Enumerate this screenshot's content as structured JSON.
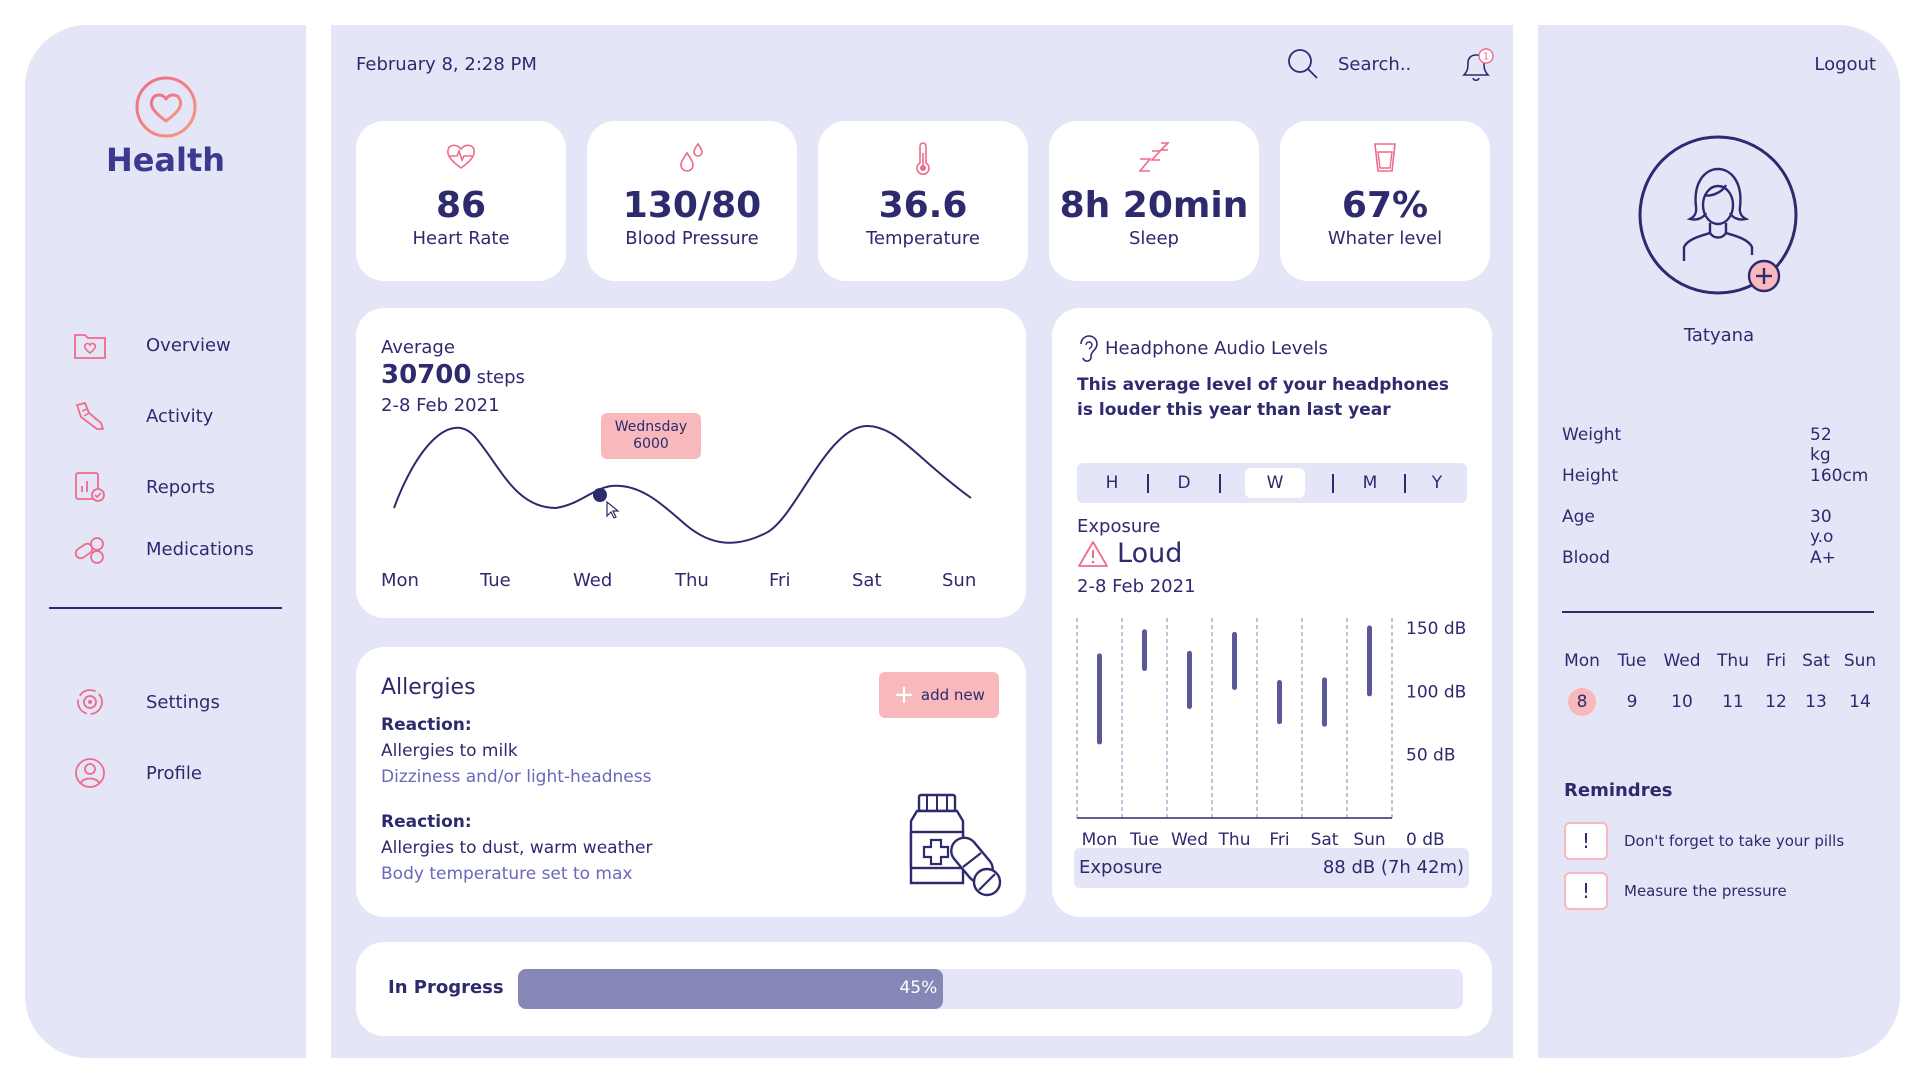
{
  "app": {
    "name": "Health"
  },
  "nav": {
    "items": [
      {
        "label": "Overview",
        "icon": "folder-heart-icon"
      },
      {
        "label": "Activity",
        "icon": "sneaker-icon"
      },
      {
        "label": "Reports",
        "icon": "report-check-icon"
      },
      {
        "label": "Medications",
        "icon": "pills-icon"
      }
    ],
    "bottom": [
      {
        "label": "Settings",
        "icon": "settings-icon"
      },
      {
        "label": "Profile",
        "icon": "profile-icon"
      }
    ]
  },
  "topbar": {
    "datetime": "February 8,  2:28 PM",
    "search_label": "Search..",
    "notifications": "1"
  },
  "stats": [
    {
      "value": "86",
      "label": "Heart Rate",
      "icon": "heart-rate-icon"
    },
    {
      "value": "130/80",
      "label": "Blood Pressure",
      "icon": "drops-icon"
    },
    {
      "value": "36.6",
      "label": "Temperature",
      "icon": "thermometer-icon"
    },
    {
      "value": "8h 20min",
      "label": "Sleep",
      "icon": "sleep-icon"
    },
    {
      "value": "67%",
      "label": "Whater level",
      "icon": "water-glass-icon"
    }
  ],
  "steps": {
    "average_label": "Average",
    "value": "30700",
    "unit": "steps",
    "range": "2-8 Feb 2021",
    "tooltip_day": "Wednsday",
    "tooltip_value": "6000",
    "days": [
      "Mon",
      "Tue",
      "Wed",
      "Thu",
      "Fri",
      "Sat",
      "Sun"
    ]
  },
  "allergies": {
    "title": "Allergies",
    "add_label": "add new",
    "entries": [
      {
        "reaction_label": "Reaction:",
        "item": "Allergies to milk",
        "detail": "Dizziness and/or light-headness"
      },
      {
        "reaction_label": "Reaction:",
        "item": "Allergies to dust, warm weather",
        "detail": "Body temperature set to max"
      }
    ]
  },
  "audio": {
    "title": "Headphone Audio Levels",
    "description_line1": "This average level of your headphones",
    "description_line2": "is louder this year than last year",
    "periods": [
      "H",
      "D",
      "W",
      "M",
      "Y"
    ],
    "active_period": "W",
    "exposure_label": "Exposure",
    "level": "Loud",
    "range": "2-8 Feb 2021",
    "summary_label": "Exposure",
    "summary_value": "88 dB (7h 42m)"
  },
  "chart_data": {
    "type": "bar",
    "categories": [
      "Mon",
      "Tue",
      "Wed",
      "Thu",
      "Fri",
      "Sat",
      "Sun"
    ],
    "series": [
      {
        "low": [
          60,
          118,
          88,
          103,
          76,
          74,
          98
        ],
        "high": [
          128,
          147,
          130,
          145,
          107,
          109,
          150
        ]
      }
    ],
    "ylim": [
      0,
      150
    ],
    "yticks": [
      "150 dB",
      "100 dB",
      "50 dB",
      "0 dB"
    ],
    "grid": true
  },
  "progress": {
    "label": "In Progress",
    "value": 45,
    "display": "45%"
  },
  "profile": {
    "logout_label": "Logout",
    "name": "Tatyana",
    "info": [
      {
        "label": "Weight",
        "value": "52 kg"
      },
      {
        "label": "Height",
        "value": "160cm"
      },
      {
        "label": "Age",
        "value": "30 y.o"
      },
      {
        "label": "Blood",
        "value": "A+"
      }
    ]
  },
  "calendar": {
    "days": [
      "Mon",
      "Tue",
      "Wed",
      "Thu",
      "Fri",
      "Sat",
      "Sun"
    ],
    "dates": [
      "8",
      "9",
      "10",
      "11",
      "12",
      "13",
      "14"
    ],
    "today": "8"
  },
  "reminders": {
    "title": "Remindres",
    "items": [
      "Don't forget to take your pills",
      "Measure the pressure"
    ]
  },
  "colors": {
    "accent": "#f7b9bc",
    "primary": "#2d2a6e",
    "panel": "#e4e6f8",
    "progress": "#8587b6"
  }
}
